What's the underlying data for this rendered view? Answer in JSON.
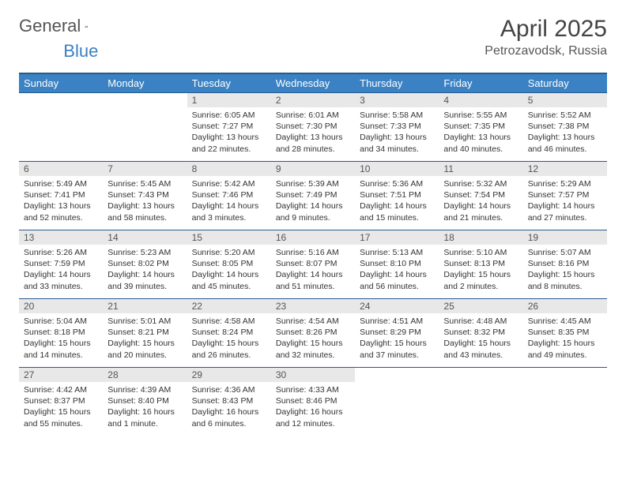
{
  "logo": {
    "text1": "General",
    "text2": "Blue"
  },
  "header": {
    "title": "April 2025",
    "location": "Petrozavodsk, Russia"
  },
  "colors": {
    "header_bg": "#3b82c4",
    "header_border": "#2a5a8a",
    "daynum_bg": "#e8e8e8",
    "text": "#333333"
  },
  "weekdays": [
    "Sunday",
    "Monday",
    "Tuesday",
    "Wednesday",
    "Thursday",
    "Friday",
    "Saturday"
  ],
  "weeks": [
    [
      {
        "n": "",
        "empty": true
      },
      {
        "n": "",
        "empty": true
      },
      {
        "n": "1",
        "sr": "6:05 AM",
        "ss": "7:27 PM",
        "dl": "13 hours and 22 minutes."
      },
      {
        "n": "2",
        "sr": "6:01 AM",
        "ss": "7:30 PM",
        "dl": "13 hours and 28 minutes."
      },
      {
        "n": "3",
        "sr": "5:58 AM",
        "ss": "7:33 PM",
        "dl": "13 hours and 34 minutes."
      },
      {
        "n": "4",
        "sr": "5:55 AM",
        "ss": "7:35 PM",
        "dl": "13 hours and 40 minutes."
      },
      {
        "n": "5",
        "sr": "5:52 AM",
        "ss": "7:38 PM",
        "dl": "13 hours and 46 minutes."
      }
    ],
    [
      {
        "n": "6",
        "sr": "5:49 AM",
        "ss": "7:41 PM",
        "dl": "13 hours and 52 minutes."
      },
      {
        "n": "7",
        "sr": "5:45 AM",
        "ss": "7:43 PM",
        "dl": "13 hours and 58 minutes."
      },
      {
        "n": "8",
        "sr": "5:42 AM",
        "ss": "7:46 PM",
        "dl": "14 hours and 3 minutes."
      },
      {
        "n": "9",
        "sr": "5:39 AM",
        "ss": "7:49 PM",
        "dl": "14 hours and 9 minutes."
      },
      {
        "n": "10",
        "sr": "5:36 AM",
        "ss": "7:51 PM",
        "dl": "14 hours and 15 minutes."
      },
      {
        "n": "11",
        "sr": "5:32 AM",
        "ss": "7:54 PM",
        "dl": "14 hours and 21 minutes."
      },
      {
        "n": "12",
        "sr": "5:29 AM",
        "ss": "7:57 PM",
        "dl": "14 hours and 27 minutes."
      }
    ],
    [
      {
        "n": "13",
        "sr": "5:26 AM",
        "ss": "7:59 PM",
        "dl": "14 hours and 33 minutes."
      },
      {
        "n": "14",
        "sr": "5:23 AM",
        "ss": "8:02 PM",
        "dl": "14 hours and 39 minutes."
      },
      {
        "n": "15",
        "sr": "5:20 AM",
        "ss": "8:05 PM",
        "dl": "14 hours and 45 minutes."
      },
      {
        "n": "16",
        "sr": "5:16 AM",
        "ss": "8:07 PM",
        "dl": "14 hours and 51 minutes."
      },
      {
        "n": "17",
        "sr": "5:13 AM",
        "ss": "8:10 PM",
        "dl": "14 hours and 56 minutes."
      },
      {
        "n": "18",
        "sr": "5:10 AM",
        "ss": "8:13 PM",
        "dl": "15 hours and 2 minutes."
      },
      {
        "n": "19",
        "sr": "5:07 AM",
        "ss": "8:16 PM",
        "dl": "15 hours and 8 minutes."
      }
    ],
    [
      {
        "n": "20",
        "sr": "5:04 AM",
        "ss": "8:18 PM",
        "dl": "15 hours and 14 minutes."
      },
      {
        "n": "21",
        "sr": "5:01 AM",
        "ss": "8:21 PM",
        "dl": "15 hours and 20 minutes."
      },
      {
        "n": "22",
        "sr": "4:58 AM",
        "ss": "8:24 PM",
        "dl": "15 hours and 26 minutes."
      },
      {
        "n": "23",
        "sr": "4:54 AM",
        "ss": "8:26 PM",
        "dl": "15 hours and 32 minutes."
      },
      {
        "n": "24",
        "sr": "4:51 AM",
        "ss": "8:29 PM",
        "dl": "15 hours and 37 minutes."
      },
      {
        "n": "25",
        "sr": "4:48 AM",
        "ss": "8:32 PM",
        "dl": "15 hours and 43 minutes."
      },
      {
        "n": "26",
        "sr": "4:45 AM",
        "ss": "8:35 PM",
        "dl": "15 hours and 49 minutes."
      }
    ],
    [
      {
        "n": "27",
        "sr": "4:42 AM",
        "ss": "8:37 PM",
        "dl": "15 hours and 55 minutes."
      },
      {
        "n": "28",
        "sr": "4:39 AM",
        "ss": "8:40 PM",
        "dl": "16 hours and 1 minute."
      },
      {
        "n": "29",
        "sr": "4:36 AM",
        "ss": "8:43 PM",
        "dl": "16 hours and 6 minutes."
      },
      {
        "n": "30",
        "sr": "4:33 AM",
        "ss": "8:46 PM",
        "dl": "16 hours and 12 minutes."
      },
      {
        "n": "",
        "empty": true
      },
      {
        "n": "",
        "empty": true
      },
      {
        "n": "",
        "empty": true
      }
    ]
  ]
}
